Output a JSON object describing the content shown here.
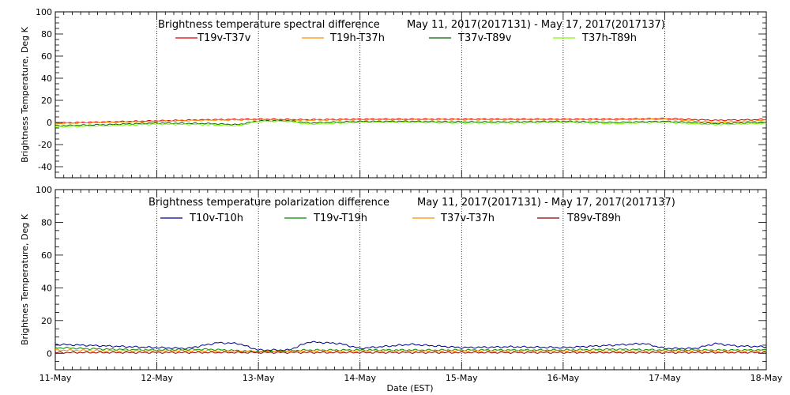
{
  "chart_data": [
    {
      "type": "line",
      "title": "Brightness temperature spectral difference",
      "date_range": "May 11, 2017(2017131) - May 17, 2017(2017137)",
      "ylabel": "Brightness Temperature, Deg K",
      "xlabel": "",
      "ylim": [
        -50,
        100
      ],
      "yticks": [
        -40,
        -20,
        0,
        20,
        40,
        60,
        80,
        100
      ],
      "xlim": [
        "2017-05-11",
        "2017-05-18"
      ],
      "grid": "vertical dotted lines at each day",
      "legend": "top, horizontal",
      "series": [
        {
          "name": "T19v-T37v",
          "color": "#e00000",
          "values": [
            [
              0,
              -0.5
            ],
            [
              0.5,
              0.5
            ],
            [
              1,
              1.5
            ],
            [
              1.5,
              2.5
            ],
            [
              2,
              3
            ],
            [
              2.5,
              2.5
            ],
            [
              3,
              3
            ],
            [
              3.5,
              3
            ],
            [
              4,
              3
            ],
            [
              4.5,
              3
            ],
            [
              5,
              3
            ],
            [
              5.5,
              3
            ],
            [
              6,
              3.5
            ],
            [
              6.5,
              2
            ],
            [
              6.9,
              2.5
            ],
            [
              7,
              3
            ]
          ]
        },
        {
          "name": "T19h-T37h",
          "color": "#ff8c00",
          "values": [
            [
              0,
              -1
            ],
            [
              0.5,
              0
            ],
            [
              1,
              1
            ],
            [
              1.5,
              2
            ],
            [
              2,
              2.5
            ],
            [
              2.5,
              2
            ],
            [
              3,
              2.5
            ],
            [
              3.5,
              2.5
            ],
            [
              4,
              2.5
            ],
            [
              4.5,
              2.5
            ],
            [
              5,
              2.5
            ],
            [
              5.5,
              2.5
            ],
            [
              6,
              3
            ],
            [
              6.5,
              0
            ],
            [
              6.9,
              1.5
            ],
            [
              7,
              2
            ]
          ]
        },
        {
          "name": "T37v-T89v",
          "color": "#006400",
          "values": [
            [
              0,
              -3
            ],
            [
              0.5,
              -2
            ],
            [
              1,
              -0.5
            ],
            [
              1.5,
              -1
            ],
            [
              1.8,
              -2
            ],
            [
              2,
              1.5
            ],
            [
              2.3,
              1.5
            ],
            [
              2.5,
              -0.5
            ],
            [
              3,
              1
            ],
            [
              3.5,
              1
            ],
            [
              4,
              0.5
            ],
            [
              4.5,
              0.5
            ],
            [
              5,
              1
            ],
            [
              5.5,
              0
            ],
            [
              6,
              1
            ],
            [
              6.5,
              -1
            ],
            [
              6.9,
              0
            ],
            [
              7,
              0
            ]
          ]
        },
        {
          "name": "T37h-T89h",
          "color": "#7cfc00",
          "values": [
            [
              0,
              -4
            ],
            [
              0.5,
              -3
            ],
            [
              1,
              -1.5
            ],
            [
              1.5,
              -2
            ],
            [
              1.8,
              -3
            ],
            [
              2,
              1
            ],
            [
              2.3,
              1
            ],
            [
              2.5,
              -1.5
            ],
            [
              3,
              0
            ],
            [
              3.5,
              0
            ],
            [
              4,
              -0.5
            ],
            [
              4.5,
              -0.5
            ],
            [
              5,
              0
            ],
            [
              5.5,
              -1
            ],
            [
              6,
              0
            ],
            [
              6.5,
              -2
            ],
            [
              6.9,
              -1
            ],
            [
              7,
              -1
            ]
          ]
        }
      ]
    },
    {
      "type": "line",
      "title": "Brightness temperature polarization difference",
      "date_range": "May 11, 2017(2017131) - May 17, 2017(2017137)",
      "ylabel": "Brightnes Temperature, Deg K",
      "xlabel": "Date (EST)",
      "ylim": [
        -10,
        100
      ],
      "yticks": [
        0,
        20,
        40,
        60,
        80,
        100
      ],
      "xlim": [
        "2017-05-11",
        "2017-05-18"
      ],
      "xticks": [
        "11-May",
        "12-May",
        "13-May",
        "14-May",
        "15-May",
        "16-May",
        "17-May",
        "18-May"
      ],
      "grid": "vertical dotted lines at each day",
      "legend": "top, horizontal",
      "series": [
        {
          "name": "T10v-T10h",
          "color": "#00008b",
          "values": [
            [
              0,
              5.5
            ],
            [
              0.5,
              4.5
            ],
            [
              1,
              3.5
            ],
            [
              1.3,
              3
            ],
            [
              1.6,
              6.5
            ],
            [
              1.8,
              6
            ],
            [
              2,
              2
            ],
            [
              2.3,
              2
            ],
            [
              2.5,
              7
            ],
            [
              2.8,
              6
            ],
            [
              3,
              3
            ],
            [
              3.5,
              5.5
            ],
            [
              4,
              3.5
            ],
            [
              4.5,
              4
            ],
            [
              5,
              3.5
            ],
            [
              5.5,
              5
            ],
            [
              5.8,
              6
            ],
            [
              6,
              3
            ],
            [
              6.3,
              3
            ],
            [
              6.5,
              6
            ],
            [
              6.7,
              4.5
            ],
            [
              7,
              4
            ]
          ]
        },
        {
          "name": "T19v-T19h",
          "color": "#008b00",
          "values": [
            [
              0,
              3.5
            ],
            [
              0.5,
              2.5
            ],
            [
              1,
              2
            ],
            [
              1.5,
              2.5
            ],
            [
              2,
              1
            ],
            [
              2.5,
              2
            ],
            [
              3,
              2
            ],
            [
              3.5,
              2
            ],
            [
              4,
              2
            ],
            [
              4.5,
              2
            ],
            [
              5,
              2
            ],
            [
              5.5,
              2.5
            ],
            [
              6,
              2
            ],
            [
              6.5,
              2
            ],
            [
              7,
              2
            ]
          ]
        },
        {
          "name": "T37v-T37h",
          "color": "#ff8c00",
          "values": [
            [
              0,
              2
            ],
            [
              0.5,
              1.5
            ],
            [
              1,
              1.5
            ],
            [
              1.5,
              1.5
            ],
            [
              2,
              1
            ],
            [
              2.5,
              1.5
            ],
            [
              3,
              1.5
            ],
            [
              3.5,
              1.5
            ],
            [
              4,
              1.5
            ],
            [
              4.5,
              1.5
            ],
            [
              5,
              1.5
            ],
            [
              5.5,
              1.5
            ],
            [
              6,
              1.5
            ],
            [
              6.5,
              1.5
            ],
            [
              7,
              1.5
            ]
          ]
        },
        {
          "name": "T89v-T89h",
          "color": "#8b0000",
          "values": [
            [
              0,
              0.5
            ],
            [
              0.5,
              0.5
            ],
            [
              1,
              0.5
            ],
            [
              1.5,
              0.5
            ],
            [
              2,
              0.5
            ],
            [
              2.5,
              0.5
            ],
            [
              3,
              0.5
            ],
            [
              3.5,
              0.5
            ],
            [
              4,
              0.5
            ],
            [
              4.5,
              0.5
            ],
            [
              5,
              0.5
            ],
            [
              5.5,
              0.5
            ],
            [
              6,
              0.5
            ],
            [
              6.5,
              0.5
            ],
            [
              7,
              0.5
            ]
          ]
        }
      ]
    }
  ]
}
